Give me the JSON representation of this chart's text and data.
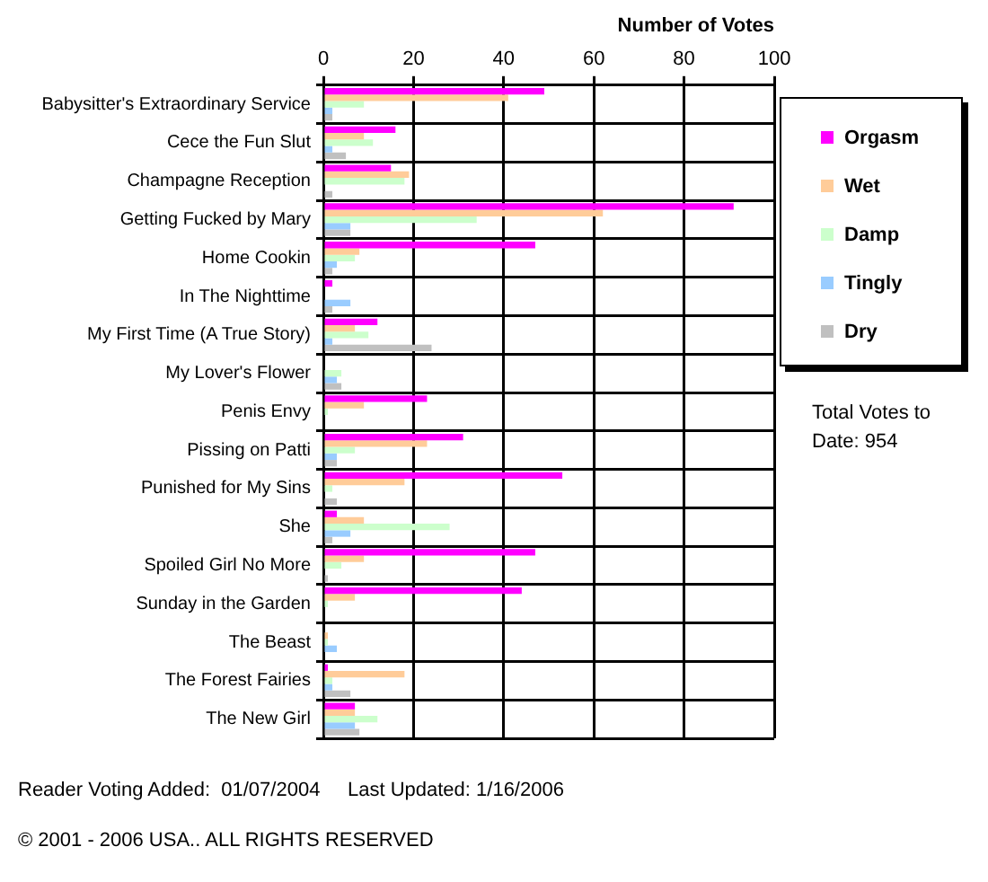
{
  "chart_data": {
    "type": "bar",
    "orientation": "horizontal",
    "xlabel": "Number of Votes",
    "categories": [
      "Babysitter's Extraordinary Service",
      "Cece the Fun Slut",
      "Champagne Reception",
      "Getting Fucked by Mary",
      "Home Cookin",
      "In The Nighttime",
      "My First Time (A True Story)",
      "My Lover's Flower",
      "Penis Envy",
      "Pissing on Patti",
      "Punished for My Sins",
      "She",
      "Spoiled Girl No More",
      "Sunday in the Garden",
      "The Beast",
      "The Forest Fairies",
      "The New Girl"
    ],
    "series": [
      {
        "name": "Orgasm",
        "color": "#ff00ff",
        "values": [
          49,
          16,
          15,
          91,
          47,
          2,
          12,
          0,
          23,
          31,
          53,
          3,
          47,
          44,
          0,
          1,
          7
        ]
      },
      {
        "name": "Wet",
        "color": "#ffcc99",
        "values": [
          41,
          9,
          19,
          62,
          8,
          0,
          7,
          0,
          9,
          23,
          18,
          9,
          9,
          7,
          1,
          18,
          7
        ]
      },
      {
        "name": "Damp",
        "color": "#ccffcc",
        "values": [
          9,
          11,
          18,
          34,
          7,
          0,
          10,
          4,
          1,
          7,
          2,
          28,
          4,
          1,
          1,
          2,
          12
        ]
      },
      {
        "name": "Tingly",
        "color": "#99ccff",
        "values": [
          2,
          2,
          0,
          6,
          3,
          6,
          2,
          3,
          0,
          3,
          0,
          6,
          0,
          0,
          3,
          2,
          7
        ]
      },
      {
        "name": "Dry",
        "color": "#c0c0c0",
        "values": [
          2,
          5,
          2,
          6,
          2,
          2,
          24,
          4,
          0,
          3,
          3,
          2,
          1,
          0,
          0,
          6,
          8
        ]
      }
    ],
    "xlim": [
      0,
      100
    ],
    "xticks": [
      0,
      20,
      40,
      60,
      80,
      100
    ],
    "grid": true,
    "legend": "right",
    "annotations": [
      "Total Votes to Date: 954",
      "Reader Voting Added:  01/07/2004     Last Updated: 1/16/2006",
      "© 2001 - 2006 USA.. ALL RIGHTS RESERVED"
    ]
  }
}
